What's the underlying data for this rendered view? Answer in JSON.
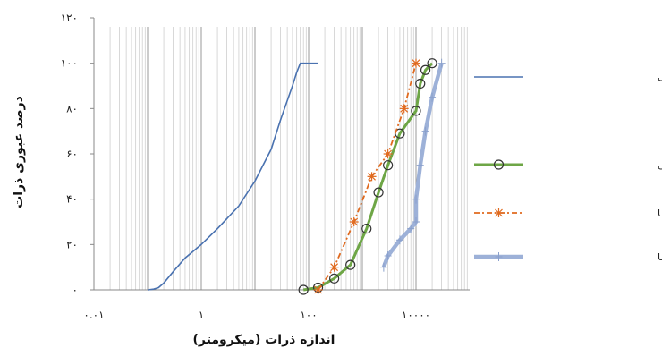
{
  "chart_data": {
    "type": "line",
    "xlabel": "اندازه ذرات (میکرومتر)",
    "ylabel": "درصد عبوری ذرات",
    "x_scale": "log",
    "xlim": [
      0.01,
      100000
    ],
    "ylim": [
      0,
      120
    ],
    "x_ticks": [
      {
        "value": 0.01,
        "label": "۰.۰۱"
      },
      {
        "value": 1,
        "label": "۱"
      },
      {
        "value": 100,
        "label": "۱۰۰"
      },
      {
        "value": 10000,
        "label": "۱۰۰۰۰"
      }
    ],
    "y_ticks": [
      {
        "value": 0,
        "label": "۰"
      },
      {
        "value": 20,
        "label": "۲۰"
      },
      {
        "value": 40,
        "label": "۴۰"
      },
      {
        "value": 60,
        "label": "۶۰"
      },
      {
        "value": 80,
        "label": "۸۰"
      },
      {
        "value": 100,
        "label": "۱۰۰"
      },
      {
        "value": 120,
        "label": "۱۲۰"
      }
    ],
    "grid": {
      "vertical_minor": true,
      "horizontal": false
    },
    "legend_position": "right",
    "series": [
      {
        "name": "منحنی دانه بندی خاک",
        "color": "#4a72b0",
        "style": "dashed-line",
        "x": [
          0.1,
          0.13,
          0.16,
          0.2,
          0.3,
          0.5,
          1,
          2,
          5,
          10,
          20,
          30,
          50,
          60,
          70,
          80,
          150
        ],
        "y": [
          0,
          0.3,
          1,
          3,
          8,
          14,
          20,
          27,
          37,
          48,
          62,
          75,
          90,
          96,
          100,
          100,
          100
        ]
      },
      {
        "name": "دانه بندی فیلتر گراولی",
        "color": "#6ea646",
        "style": "line-circle",
        "x": [
          80,
          150,
          300,
          600,
          1200,
          2000,
          3000,
          5000,
          10000,
          12000,
          15000,
          20000
        ],
        "y": [
          0,
          1,
          5,
          11,
          27,
          43,
          55,
          69,
          79,
          91,
          97,
          100
        ]
      },
      {
        "name": "حد پایین USBR",
        "color": "#e06a1f",
        "style": "dashdot-star",
        "x": [
          150,
          300,
          700,
          1500,
          3000,
          6000,
          10000
        ],
        "y": [
          0,
          10,
          30,
          50,
          60,
          80,
          100
        ]
      },
      {
        "name": "حد بالا USBR",
        "color": "#9db1d8",
        "style": "thick-line-plus",
        "x": [
          2500,
          3000,
          5000,
          8000,
          10000,
          10000,
          12000,
          15000,
          20000,
          30000
        ],
        "y": [
          10,
          15,
          22,
          27,
          30,
          40,
          55,
          70,
          85,
          100
        ]
      }
    ]
  }
}
